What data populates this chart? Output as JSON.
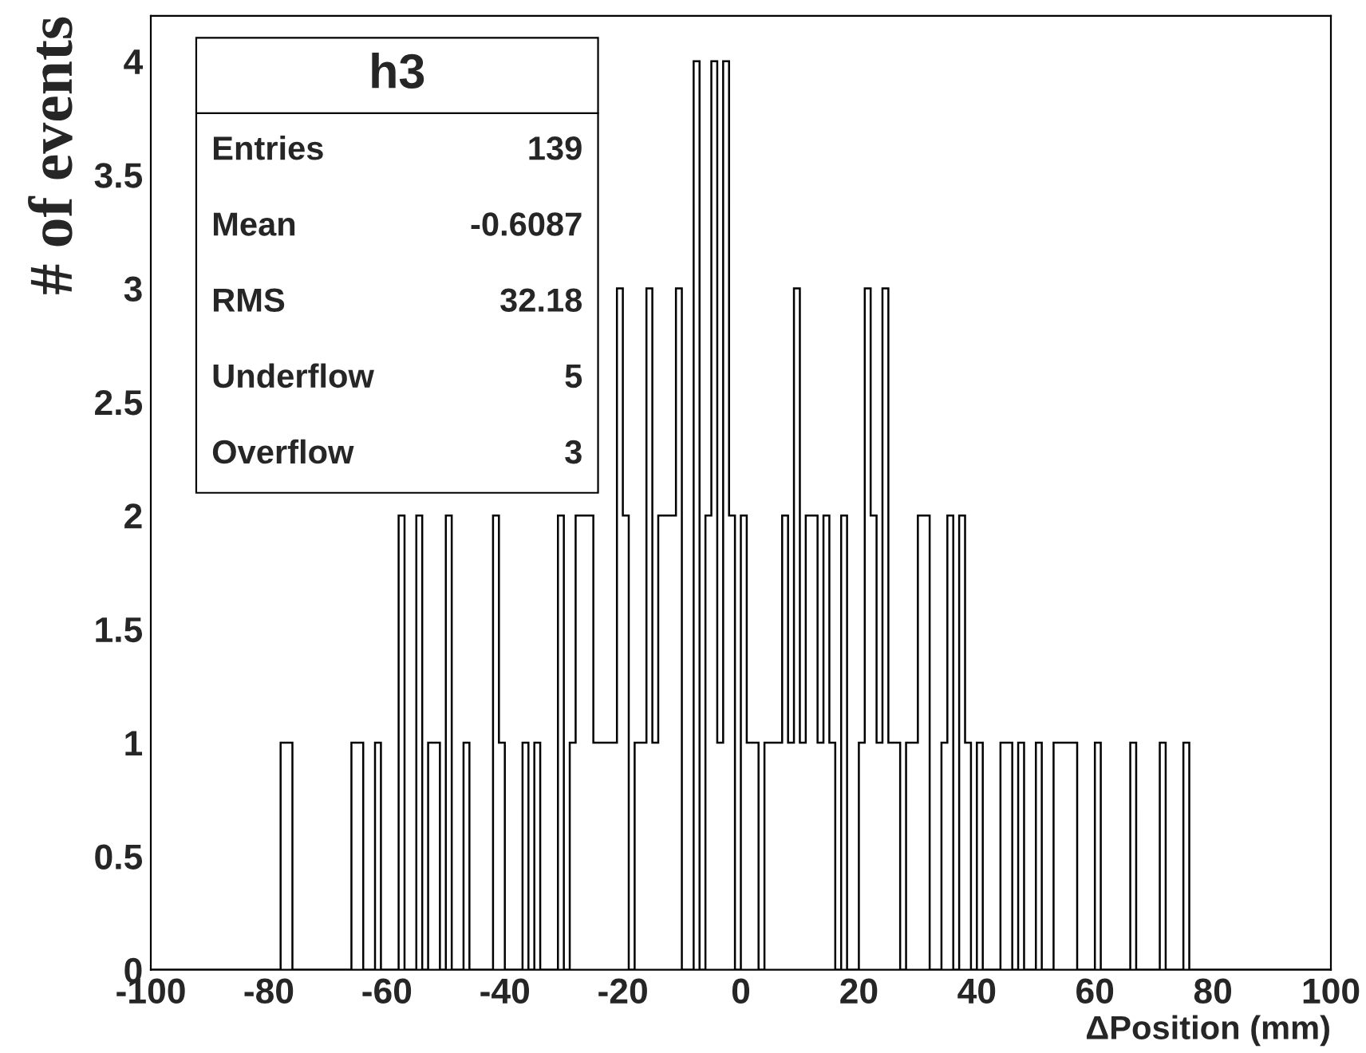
{
  "chart_data": {
    "type": "histogram",
    "title": "h3",
    "xlabel": "ΔPosition (mm)",
    "ylabel": "# of events",
    "annotations": [
      "Entries",
      "139",
      "Mean",
      "-0.6087",
      "RMS",
      "32.18",
      "Underflow",
      "5",
      "Overflow",
      "3"
    ],
    "bins": [
      -100,
      -99,
      -98,
      -97,
      -96,
      -95,
      -94,
      -93,
      -92,
      -91,
      -90,
      -89,
      -88,
      -87,
      -86,
      -85,
      -84,
      -83,
      -82,
      -81,
      -80,
      -79,
      -78,
      -77,
      -76,
      -75,
      -74,
      -73,
      -72,
      -71,
      -70,
      -69,
      -68,
      -67,
      -66,
      -65,
      -64,
      -63,
      -62,
      -61,
      -60,
      -59,
      -58,
      -57,
      -56,
      -55,
      -54,
      -53,
      -52,
      -51,
      -50,
      -49,
      -48,
      -47,
      -46,
      -45,
      -44,
      -43,
      -42,
      -41,
      -40,
      -39,
      -38,
      -37,
      -36,
      -35,
      -34,
      -33,
      -32,
      -31,
      -30,
      -29,
      -28,
      -27,
      -26,
      -25,
      -24,
      -23,
      -22,
      -21,
      -20,
      -19,
      -18,
      -17,
      -16,
      -15,
      -14,
      -13,
      -12,
      -11,
      -10,
      -9,
      -8,
      -7,
      -6,
      -5,
      -4,
      -3,
      -2,
      -1,
      0,
      1,
      2,
      3,
      4,
      5,
      6,
      7,
      8,
      9,
      10,
      11,
      12,
      13,
      14,
      15,
      16,
      17,
      18,
      19,
      20,
      21,
      22,
      23,
      24,
      25,
      26,
      27,
      28,
      29,
      30,
      31,
      32,
      33,
      34,
      35,
      36,
      37,
      38,
      39,
      40,
      41,
      42,
      43,
      44,
      45,
      46,
      47,
      48,
      49,
      50,
      51,
      52,
      53,
      54,
      55,
      56,
      57,
      58,
      59,
      60,
      61,
      62,
      63,
      64,
      65,
      66,
      67,
      68,
      69,
      70,
      71,
      72,
      73,
      74,
      75,
      76,
      77,
      78,
      79,
      80,
      81,
      82,
      83,
      84,
      85,
      86,
      87,
      88,
      89,
      90,
      91,
      92,
      93,
      94,
      95,
      96,
      97,
      98,
      99,
      100
    ],
    "values": [
      0,
      0,
      0,
      0,
      0,
      0,
      0,
      0,
      0,
      0,
      0,
      0,
      0,
      0,
      0,
      0,
      0,
      0,
      0,
      0,
      0,
      0,
      1,
      1,
      0,
      0,
      0,
      0,
      0,
      0,
      0,
      0,
      0,
      0,
      1,
      1,
      0,
      0,
      1,
      0,
      0,
      0,
      2,
      0,
      0,
      2,
      0,
      1,
      1,
      0,
      2,
      0,
      0,
      1,
      0,
      0,
      0,
      0,
      2,
      1,
      0,
      0,
      0,
      1,
      0,
      1,
      0,
      0,
      0,
      2,
      0,
      1,
      2,
      2,
      2,
      1,
      1,
      1,
      1,
      3,
      2,
      0,
      1,
      1,
      3,
      1,
      2,
      2,
      2,
      3,
      0,
      0,
      4,
      0,
      2,
      4,
      1,
      4,
      2,
      0,
      2,
      1,
      1,
      0,
      1,
      1,
      1,
      2,
      1,
      3,
      1,
      2,
      2,
      1,
      2,
      1,
      0,
      2,
      0,
      0,
      1,
      3,
      2,
      1,
      3,
      1,
      1,
      0,
      1,
      1,
      2,
      2,
      0,
      0,
      1,
      2,
      0,
      2,
      1,
      0,
      1,
      0,
      0,
      0,
      1,
      1,
      0,
      1,
      0,
      0,
      1,
      0,
      0,
      1,
      1,
      1,
      1,
      0,
      0,
      0,
      1,
      0,
      0,
      0,
      0,
      0,
      1,
      0,
      0,
      0,
      0,
      1,
      0,
      0,
      0,
      1,
      0,
      0,
      0,
      0,
      0,
      0,
      0,
      0,
      0,
      0,
      0,
      0,
      0,
      0,
      0,
      0,
      0,
      0,
      0,
      0,
      0,
      0,
      0,
      0
    ],
    "color": "#000000",
    "xlim": [
      -100,
      100
    ],
    "ylim": [
      0,
      4.2
    ],
    "xticks": [
      -100,
      -80,
      -60,
      -40,
      -20,
      0,
      20,
      40,
      60,
      80,
      100
    ],
    "yticks": [
      0,
      0.5,
      1,
      1.5,
      2,
      2.5,
      3,
      3.5,
      4
    ],
    "grid": false,
    "legend": false
  }
}
